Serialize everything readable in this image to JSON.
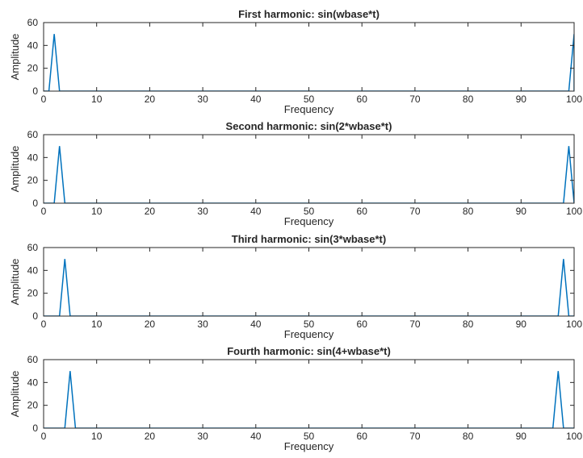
{
  "chart_data": [
    {
      "type": "line",
      "title": "First harmonic: sin(wbase*t)",
      "xlabel": "Frequency",
      "ylabel": "Amplitude",
      "xlim": [
        0,
        100
      ],
      "ylim": [
        0,
        60
      ],
      "xticks": [
        0,
        10,
        20,
        30,
        40,
        50,
        60,
        70,
        80,
        90,
        100
      ],
      "yticks": [
        0,
        20,
        40,
        60
      ],
      "grid": false,
      "series": [
        {
          "x": [
            1,
            2,
            3,
            99,
            100
          ],
          "y": [
            0,
            50,
            0,
            0,
            50
          ]
        }
      ]
    },
    {
      "type": "line",
      "title": "Second harmonic: sin(2*wbase*t)",
      "xlabel": "Frequency",
      "ylabel": "Amplitude",
      "xlim": [
        0,
        100
      ],
      "ylim": [
        0,
        60
      ],
      "xticks": [
        0,
        10,
        20,
        30,
        40,
        50,
        60,
        70,
        80,
        90,
        100
      ],
      "yticks": [
        0,
        20,
        40,
        60
      ],
      "grid": false,
      "series": [
        {
          "x": [
            2,
            3,
            4,
            98,
            99,
            100
          ],
          "y": [
            0,
            50,
            0,
            0,
            50,
            0
          ]
        }
      ]
    },
    {
      "type": "line",
      "title": "Third harmonic: sin(3*wbase*t)",
      "xlabel": "Frequency",
      "ylabel": "Amplitude",
      "xlim": [
        0,
        100
      ],
      "ylim": [
        0,
        60
      ],
      "xticks": [
        0,
        10,
        20,
        30,
        40,
        50,
        60,
        70,
        80,
        90,
        100
      ],
      "yticks": [
        0,
        20,
        40,
        60
      ],
      "grid": false,
      "series": [
        {
          "x": [
            3,
            4,
            5,
            97,
            98,
            99
          ],
          "y": [
            0,
            50,
            0,
            0,
            50,
            0
          ]
        }
      ]
    },
    {
      "type": "line",
      "title": "Fourth harmonic: sin(4+wbase*t)",
      "xlabel": "Frequency",
      "ylabel": "Amplitude",
      "xlim": [
        0,
        100
      ],
      "ylim": [
        0,
        60
      ],
      "xticks": [
        0,
        10,
        20,
        30,
        40,
        50,
        60,
        70,
        80,
        90,
        100
      ],
      "yticks": [
        0,
        20,
        40,
        60
      ],
      "grid": false,
      "series": [
        {
          "x": [
            4,
            5,
            6,
            96,
            97,
            98
          ],
          "y": [
            0,
            50,
            0,
            0,
            50,
            0
          ]
        }
      ]
    }
  ],
  "colors": {
    "line": "#0072bd",
    "axes": "#262626",
    "background": "#ffffff"
  }
}
